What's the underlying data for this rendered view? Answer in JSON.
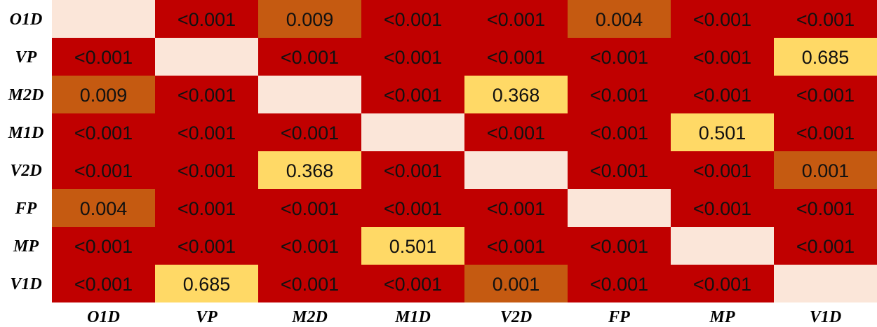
{
  "chart_data": {
    "type": "heatmap",
    "rows": [
      "O1D",
      "VP",
      "M2D",
      "M1D",
      "V2D",
      "FP",
      "MP",
      "V1D"
    ],
    "columns": [
      "O1D",
      "VP",
      "M2D",
      "M1D",
      "V2D",
      "FP",
      "MP",
      "V1D"
    ],
    "cells": [
      [
        "",
        "<0.001",
        "0.009",
        "<0.001",
        "<0.001",
        "0.004",
        "<0.001",
        "<0.001"
      ],
      [
        "<0.001",
        "",
        "<0.001",
        "<0.001",
        "<0.001",
        "<0.001",
        "<0.001",
        "0.685"
      ],
      [
        "0.009",
        "<0.001",
        "",
        "<0.001",
        "0.368",
        "<0.001",
        "<0.001",
        "<0.001"
      ],
      [
        "<0.001",
        "<0.001",
        "<0.001",
        "",
        "<0.001",
        "<0.001",
        "0.501",
        "<0.001"
      ],
      [
        "<0.001",
        "<0.001",
        "0.368",
        "<0.001",
        "",
        "<0.001",
        "<0.001",
        "0.001"
      ],
      [
        "0.004",
        "<0.001",
        "<0.001",
        "<0.001",
        "<0.001",
        "",
        "<0.001",
        "<0.001"
      ],
      [
        "<0.001",
        "<0.001",
        "<0.001",
        "0.501",
        "<0.001",
        "<0.001",
        "",
        "<0.001"
      ],
      [
        "<0.001",
        "0.685",
        "<0.001",
        "<0.001",
        "0.001",
        "<0.001",
        "<0.001",
        ""
      ]
    ],
    "colors": {
      "diagonal": "#fbe6d9",
      "significant": "#c00000",
      "moderate": "#c55a11",
      "not_significant": "#ffd966",
      "text": "#111111"
    },
    "title": "",
    "xlabel": "",
    "ylabel": "",
    "legend": "none",
    "grid": false
  }
}
